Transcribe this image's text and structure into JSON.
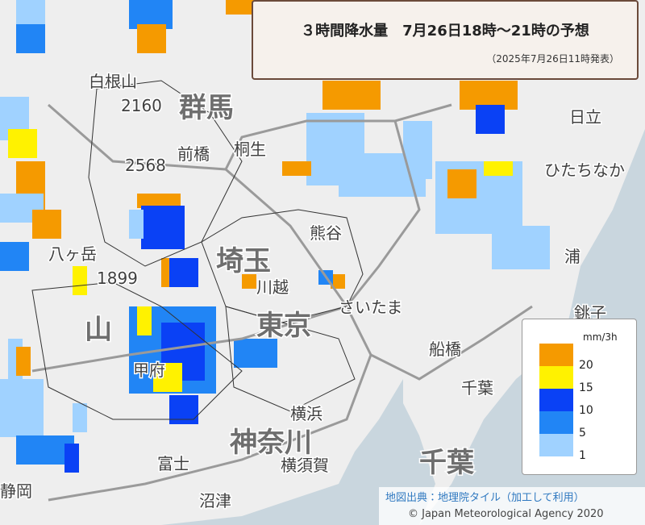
{
  "header": {
    "title": "３時間降水量　7月26日18時～21時の予想",
    "issued": "（2025年7月26日11時発表）"
  },
  "legend": {
    "unit": "mm/3h",
    "items": [
      {
        "label": "20",
        "color": "#f59a00"
      },
      {
        "label": "15",
        "color": "#fff200"
      },
      {
        "label": "10",
        "color": "#0a41f5"
      },
      {
        "label": "5",
        "color": "#2185f5"
      },
      {
        "label": "1",
        "color": "#a0d2ff"
      }
    ]
  },
  "attribution": {
    "source": "地図出典：地理院タイル（加工して利用）",
    "copyright": "© Japan Meteorological Agency 2020"
  },
  "places": {
    "prefectures": [
      "群馬",
      "埼玉",
      "東京",
      "神奈川",
      "千葉",
      "山"
    ],
    "cities": [
      "白根山",
      "2160",
      "前橋",
      "桐生",
      "熊谷",
      "川越",
      "さいたま",
      "船橋",
      "千葉",
      "横浜",
      "横須賀",
      "富士",
      "沼津",
      "静岡",
      "甲府",
      "八ヶ岳",
      "1899",
      "銚子",
      "ひたちなか",
      "日立",
      "2568",
      "浦"
    ]
  }
}
